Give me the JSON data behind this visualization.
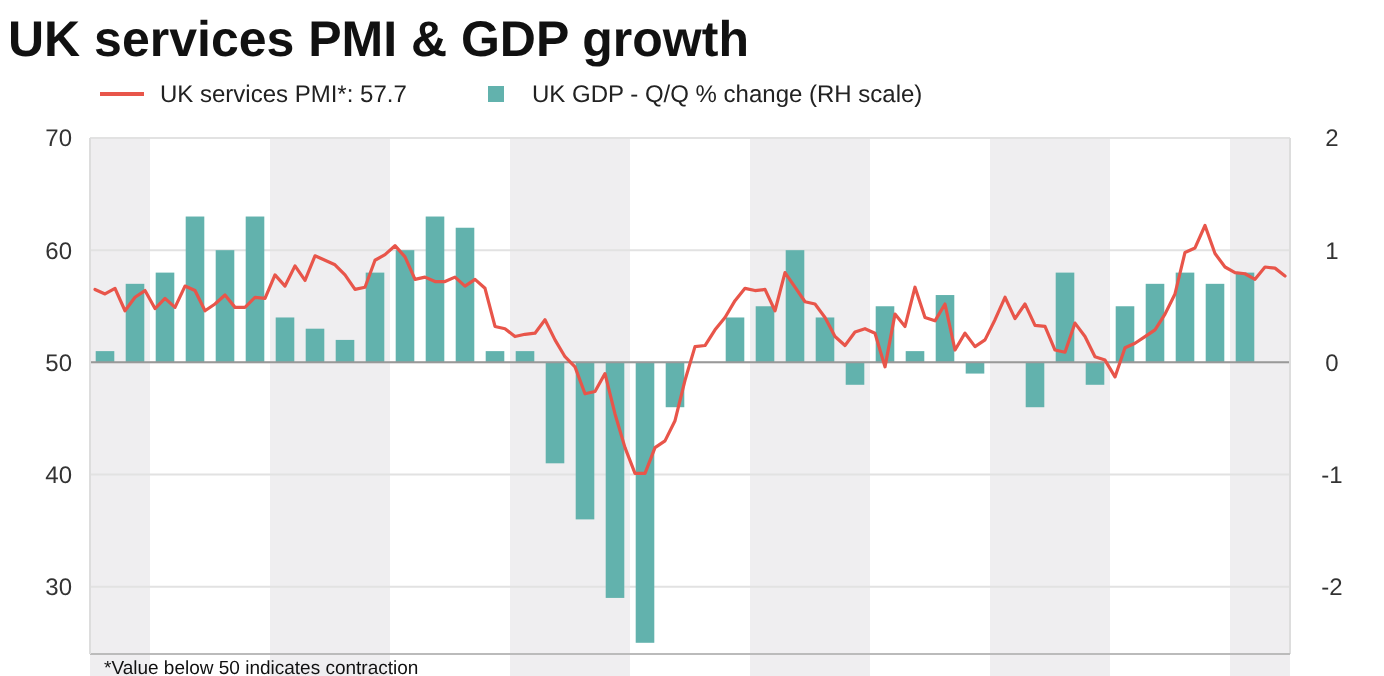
{
  "chart_data": [
    {
      "type": "bar",
      "title": "UK services PMI & GDP growth",
      "annotations": [
        "*Value below 50 indicates contraction"
      ],
      "legend": "top",
      "grid": "y",
      "ylim": [
        -2.6,
        2
      ],
      "yticks": [
        -2,
        -1,
        0,
        1,
        2
      ],
      "categories": [
        null,
        null,
        null,
        null,
        null,
        null,
        null,
        null,
        null,
        null,
        null,
        null,
        null,
        null,
        null,
        null,
        null,
        null,
        null,
        null,
        null,
        null,
        null,
        null,
        null,
        null,
        null,
        null,
        null,
        null,
        null,
        null,
        null,
        null,
        null,
        null,
        null,
        null,
        null,
        null
      ],
      "series": [
        {
          "name": "UK GDP - Q/Q % change (RH scale)",
          "color": "#62b2ad",
          "values": [
            0.1,
            0.7,
            0.8,
            1.3,
            1.0,
            1.3,
            0.4,
            0.3,
            0.2,
            0.8,
            1.0,
            1.3,
            1.2,
            0.1,
            0.1,
            -0.9,
            -1.4,
            -2.1,
            -2.5,
            -0.4,
            0,
            0.4,
            0.5,
            1.0,
            0.4,
            -0.2,
            0.5,
            0.1,
            0.6,
            -0.1,
            0,
            -0.4,
            0.8,
            -0.2,
            0.5,
            0.7,
            0.8,
            0.7,
            0.8,
            null
          ]
        }
      ]
    },
    {
      "type": "line",
      "legend": "top",
      "ylim": [
        24,
        70
      ],
      "yticks": [
        30,
        40,
        50,
        60,
        70
      ],
      "categories": [
        null,
        null,
        null,
        null,
        null,
        null,
        null,
        null,
        null,
        null,
        null,
        null,
        null,
        null,
        null,
        null,
        null,
        null,
        null,
        null,
        null,
        null,
        null,
        null,
        null,
        null,
        null,
        null,
        null,
        null,
        null,
        null,
        null,
        null,
        null,
        null,
        null,
        null,
        null,
        null,
        null,
        null,
        null,
        null,
        null,
        null,
        null,
        null,
        null,
        null,
        null,
        null,
        null,
        null,
        null,
        null,
        null,
        null,
        null,
        null,
        null,
        null,
        null,
        null,
        null,
        null,
        null,
        null,
        null,
        null,
        null,
        null,
        null,
        null,
        null,
        null,
        null,
        null,
        null,
        null,
        null,
        null,
        null,
        null,
        null,
        null,
        null,
        null,
        null,
        null,
        null,
        null,
        null,
        null,
        null,
        null,
        null,
        null,
        null,
        null,
        null,
        null,
        null,
        null,
        null,
        null,
        null,
        null,
        null,
        null,
        null,
        null,
        null,
        null,
        null,
        null,
        null,
        null,
        null,
        null
      ],
      "series": [
        {
          "name": "UK services PMI*: 57.7",
          "color": "#e8554a",
          "values": [
            56.5,
            56.1,
            56.6,
            54.6,
            55.8,
            56.4,
            54.8,
            55.7,
            54.9,
            56.8,
            56.4,
            54.6,
            55.2,
            56.0,
            54.9,
            54.9,
            55.8,
            55.7,
            57.8,
            56.8,
            58.6,
            57.3,
            59.5,
            59.1,
            58.7,
            57.8,
            56.5,
            56.7,
            59.1,
            59.6,
            60.4,
            59.4,
            57.4,
            57.6,
            57.2,
            57.2,
            57.6,
            56.8,
            57.4,
            56.6,
            53.2,
            53.0,
            52.3,
            52.5,
            52.6,
            53.8,
            52.0,
            50.5,
            49.6,
            47.2,
            47.4,
            49.0,
            45.4,
            42.4,
            40.1,
            40.1,
            42.4,
            43.0,
            44.8,
            48.4,
            51.4,
            51.5,
            52.9,
            54.0,
            55.5,
            56.6,
            56.4,
            56.5,
            54.6,
            58.0,
            56.7,
            55.4,
            55.2,
            54.0,
            52.3,
            51.5,
            52.7,
            53.0,
            52.6,
            49.6,
            54.3,
            53.2,
            56.7,
            54.0,
            53.7,
            55.2,
            51.1,
            52.6,
            51.4,
            52.0,
            53.8,
            55.8,
            53.9,
            55.2,
            53.3,
            53.2,
            51.1,
            50.9,
            53.5,
            52.3,
            50.5,
            50.2,
            48.7,
            51.3,
            51.7,
            52.3,
            52.9,
            54.3,
            56.1,
            59.8,
            60.2,
            62.2,
            59.7,
            58.5,
            58.0,
            57.9,
            57.4,
            58.5,
            58.4,
            57.7
          ]
        }
      ]
    }
  ]
}
